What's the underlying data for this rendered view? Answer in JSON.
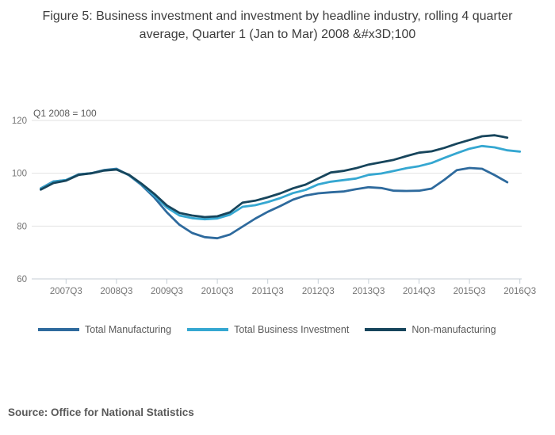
{
  "title": "Figure 5: Business investment and investment by headline industry, rolling 4 quarter average, Quarter 1 (Jan to Mar) 2008 &#x3D;100",
  "source": "Source: Office for National Statistics",
  "legend": [
    {
      "label": "Total Manufacturing",
      "color": "#2e6a9d"
    },
    {
      "label": "Total Business Investment",
      "color": "#35a7d1"
    },
    {
      "label": "Non-manufacturing",
      "color": "#17455c"
    }
  ],
  "colors": {
    "grid": "#e2e2e2",
    "axis": "#c5ced6",
    "tick_text": "#757575",
    "annotation_text": "#595959",
    "title_text": "#3d3d3d",
    "source_text": "#595959"
  },
  "chart_data": {
    "type": "line",
    "title": "Figure 5: Business investment and investment by headline industry, rolling 4 quarter average, Quarter 1 (Jan to Mar) 2008 &#x3D;100",
    "annotation": "Q1 2008 = 100",
    "xlabel": "",
    "ylabel": "",
    "ylim": [
      60,
      120
    ],
    "grid": true,
    "legend_position": "bottom",
    "y_ticks": [
      120,
      100,
      80,
      60
    ],
    "x_ticks": [
      {
        "i": 2,
        "label": "2007Q3"
      },
      {
        "i": 6,
        "label": "2008Q3"
      },
      {
        "i": 10,
        "label": "2009Q3"
      },
      {
        "i": 14,
        "label": "2010Q3"
      },
      {
        "i": 18,
        "label": "2011Q3"
      },
      {
        "i": 22,
        "label": "2012Q3"
      },
      {
        "i": 26,
        "label": "2013Q3"
      },
      {
        "i": 30,
        "label": "2014Q3"
      },
      {
        "i": 34,
        "label": "2015Q3"
      },
      {
        "i": 38,
        "label": "2016Q3"
      }
    ],
    "categories": [
      "2007Q1",
      "2007Q2",
      "2007Q3",
      "2007Q4",
      "2008Q1",
      "2008Q2",
      "2008Q3",
      "2008Q4",
      "2009Q1",
      "2009Q2",
      "2009Q3",
      "2009Q4",
      "2010Q1",
      "2010Q2",
      "2010Q3",
      "2010Q4",
      "2011Q1",
      "2011Q2",
      "2011Q3",
      "2011Q4",
      "2012Q1",
      "2012Q2",
      "2012Q3",
      "2012Q4",
      "2013Q1",
      "2013Q2",
      "2013Q3",
      "2013Q4",
      "2014Q1",
      "2014Q2",
      "2014Q3",
      "2014Q4",
      "2015Q1",
      "2015Q2",
      "2015Q3",
      "2015Q4",
      "2016Q1",
      "2016Q2",
      "2016Q3"
    ],
    "series": [
      {
        "name": "Total Manufacturing",
        "color": "#2e6a9d",
        "values": [
          94.3,
          96.9,
          97.4,
          99.6,
          100.0,
          101.2,
          101.7,
          99.2,
          95.5,
          90.8,
          85.2,
          80.5,
          77.4,
          75.8,
          75.4,
          76.8,
          79.8,
          82.8,
          85.4,
          87.6,
          90.0,
          91.6,
          92.4,
          92.8,
          93.1,
          94.0,
          94.7,
          94.4,
          93.4,
          93.3,
          93.4,
          94.2,
          97.5,
          101.2,
          102.0,
          101.7,
          99.3,
          96.6,
          null
        ]
      },
      {
        "name": "Total Business Investment",
        "color": "#35a7d1",
        "values": [
          94.2,
          96.8,
          97.4,
          99.5,
          100.0,
          101.1,
          101.5,
          99.3,
          95.8,
          91.6,
          87.0,
          84.0,
          83.0,
          82.6,
          82.9,
          84.3,
          87.3,
          87.9,
          89.1,
          90.6,
          92.5,
          93.7,
          95.8,
          96.8,
          97.4,
          98.0,
          99.4,
          99.9,
          100.9,
          101.9,
          102.7,
          103.9,
          105.8,
          107.6,
          109.3,
          110.3,
          109.8,
          108.7,
          108.2
        ]
      },
      {
        "name": "Non-manufacturing",
        "color": "#17455c",
        "values": [
          93.8,
          96.3,
          97.2,
          99.4,
          100.0,
          101.0,
          101.4,
          99.4,
          96.0,
          92.2,
          87.8,
          85.0,
          84.0,
          83.4,
          83.7,
          85.2,
          88.9,
          89.6,
          90.9,
          92.4,
          94.3,
          95.7,
          98.0,
          100.3,
          100.9,
          101.9,
          103.3,
          104.2,
          105.1,
          106.5,
          107.8,
          108.3,
          109.6,
          111.2,
          112.6,
          114.0,
          114.4,
          113.5,
          null
        ]
      }
    ]
  }
}
